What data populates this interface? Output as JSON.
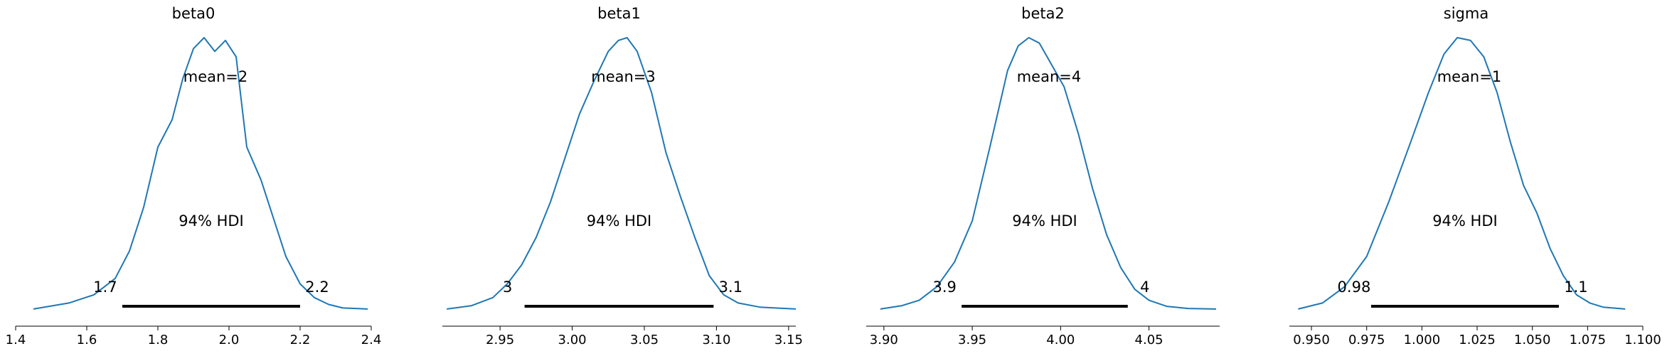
{
  "colors": {
    "curve": "#1f77b4",
    "hdi_bar": "#000000",
    "axis": "#000000"
  },
  "chart_data": [
    {
      "type": "area",
      "title": "beta0",
      "mean_label": "mean=2",
      "hdi_text": "94% HDI",
      "hdi": {
        "low": 1.7,
        "high": 2.2,
        "low_label": "1.7",
        "high_label": "2.2"
      },
      "xlim": [
        1.4,
        2.4
      ],
      "xticks": [
        1.4,
        1.6,
        1.8,
        2.0,
        2.2,
        2.4
      ],
      "xtick_labels": [
        "1.4",
        "1.6",
        "1.8",
        "2.0",
        "2.2",
        "2.4"
      ],
      "density": {
        "x": [
          1.45,
          1.55,
          1.62,
          1.68,
          1.72,
          1.76,
          1.8,
          1.84,
          1.87,
          1.9,
          1.93,
          1.96,
          1.99,
          2.02,
          2.05,
          2.09,
          2.13,
          2.16,
          2.2,
          2.24,
          2.28,
          2.32,
          2.39
        ],
        "y": [
          0.008,
          0.03,
          0.06,
          0.12,
          0.22,
          0.38,
          0.6,
          0.7,
          0.85,
          0.96,
          1.0,
          0.95,
          0.99,
          0.93,
          0.6,
          0.48,
          0.32,
          0.2,
          0.1,
          0.05,
          0.025,
          0.012,
          0.008
        ]
      }
    },
    {
      "type": "area",
      "title": "beta1",
      "mean_label": "mean=3",
      "hdi_text": "94% HDI",
      "hdi": {
        "low": 2.967,
        "high": 3.098,
        "low_label": "3",
        "high_label": "3.1"
      },
      "xlim": [
        2.91,
        3.155
      ],
      "xticks": [
        2.95,
        3.0,
        3.05,
        3.1,
        3.15
      ],
      "xtick_labels": [
        "2.95",
        "3.00",
        "3.05",
        "3.10",
        "3.15"
      ],
      "density": {
        "x": [
          2.913,
          2.93,
          2.945,
          2.955,
          2.965,
          2.975,
          2.985,
          2.995,
          3.005,
          3.015,
          3.025,
          3.032,
          3.038,
          3.045,
          3.055,
          3.065,
          3.075,
          3.085,
          3.095,
          3.105,
          3.115,
          3.13,
          3.155
        ],
        "y": [
          0.008,
          0.02,
          0.05,
          0.1,
          0.17,
          0.27,
          0.4,
          0.56,
          0.72,
          0.84,
          0.95,
          0.99,
          1.0,
          0.95,
          0.8,
          0.58,
          0.42,
          0.27,
          0.13,
          0.06,
          0.03,
          0.015,
          0.008
        ]
      }
    },
    {
      "type": "area",
      "title": "beta2",
      "mean_label": "mean=4",
      "hdi_text": "94% HDI",
      "hdi": {
        "low": 3.944,
        "high": 4.038,
        "low_label": "3.9",
        "high_label": "4"
      },
      "xlim": [
        3.89,
        4.09
      ],
      "xticks": [
        3.9,
        3.95,
        4.0,
        4.05
      ],
      "xtick_labels": [
        "3.90",
        "3.95",
        "4.00",
        "4.05"
      ],
      "density": {
        "x": [
          3.898,
          3.91,
          3.92,
          3.93,
          3.94,
          3.95,
          3.96,
          3.97,
          3.976,
          3.982,
          3.988,
          3.995,
          4.002,
          4.01,
          4.018,
          4.026,
          4.034,
          4.042,
          4.05,
          4.06,
          4.072,
          4.088
        ],
        "y": [
          0.008,
          0.02,
          0.04,
          0.09,
          0.18,
          0.33,
          0.6,
          0.88,
          0.97,
          1.0,
          0.98,
          0.9,
          0.82,
          0.65,
          0.45,
          0.28,
          0.16,
          0.08,
          0.04,
          0.018,
          0.01,
          0.008
        ]
      }
    },
    {
      "type": "area",
      "title": "sigma",
      "mean_label": "mean=1",
      "hdi_text": "94% HDI",
      "hdi": {
        "low": 0.977,
        "high": 1.062,
        "low_label": "0.98",
        "high_label": "1.1"
      },
      "xlim": [
        0.94,
        1.1
      ],
      "xticks": [
        0.95,
        0.975,
        1.0,
        1.025,
        1.05,
        1.075,
        1.1
      ],
      "xtick_labels": [
        "0.950",
        "0.975",
        "1.000",
        "1.025",
        "1.050",
        "1.075",
        "1.100"
      ],
      "density": {
        "x": [
          0.944,
          0.955,
          0.965,
          0.975,
          0.985,
          0.995,
          1.003,
          1.01,
          1.016,
          1.022,
          1.028,
          1.034,
          1.04,
          1.046,
          1.052,
          1.058,
          1.064,
          1.07,
          1.076,
          1.082,
          1.092
        ],
        "y": [
          0.008,
          0.03,
          0.09,
          0.2,
          0.4,
          0.62,
          0.8,
          0.94,
          1.0,
          0.99,
          0.93,
          0.8,
          0.62,
          0.46,
          0.36,
          0.23,
          0.13,
          0.06,
          0.03,
          0.015,
          0.008
        ]
      }
    }
  ]
}
